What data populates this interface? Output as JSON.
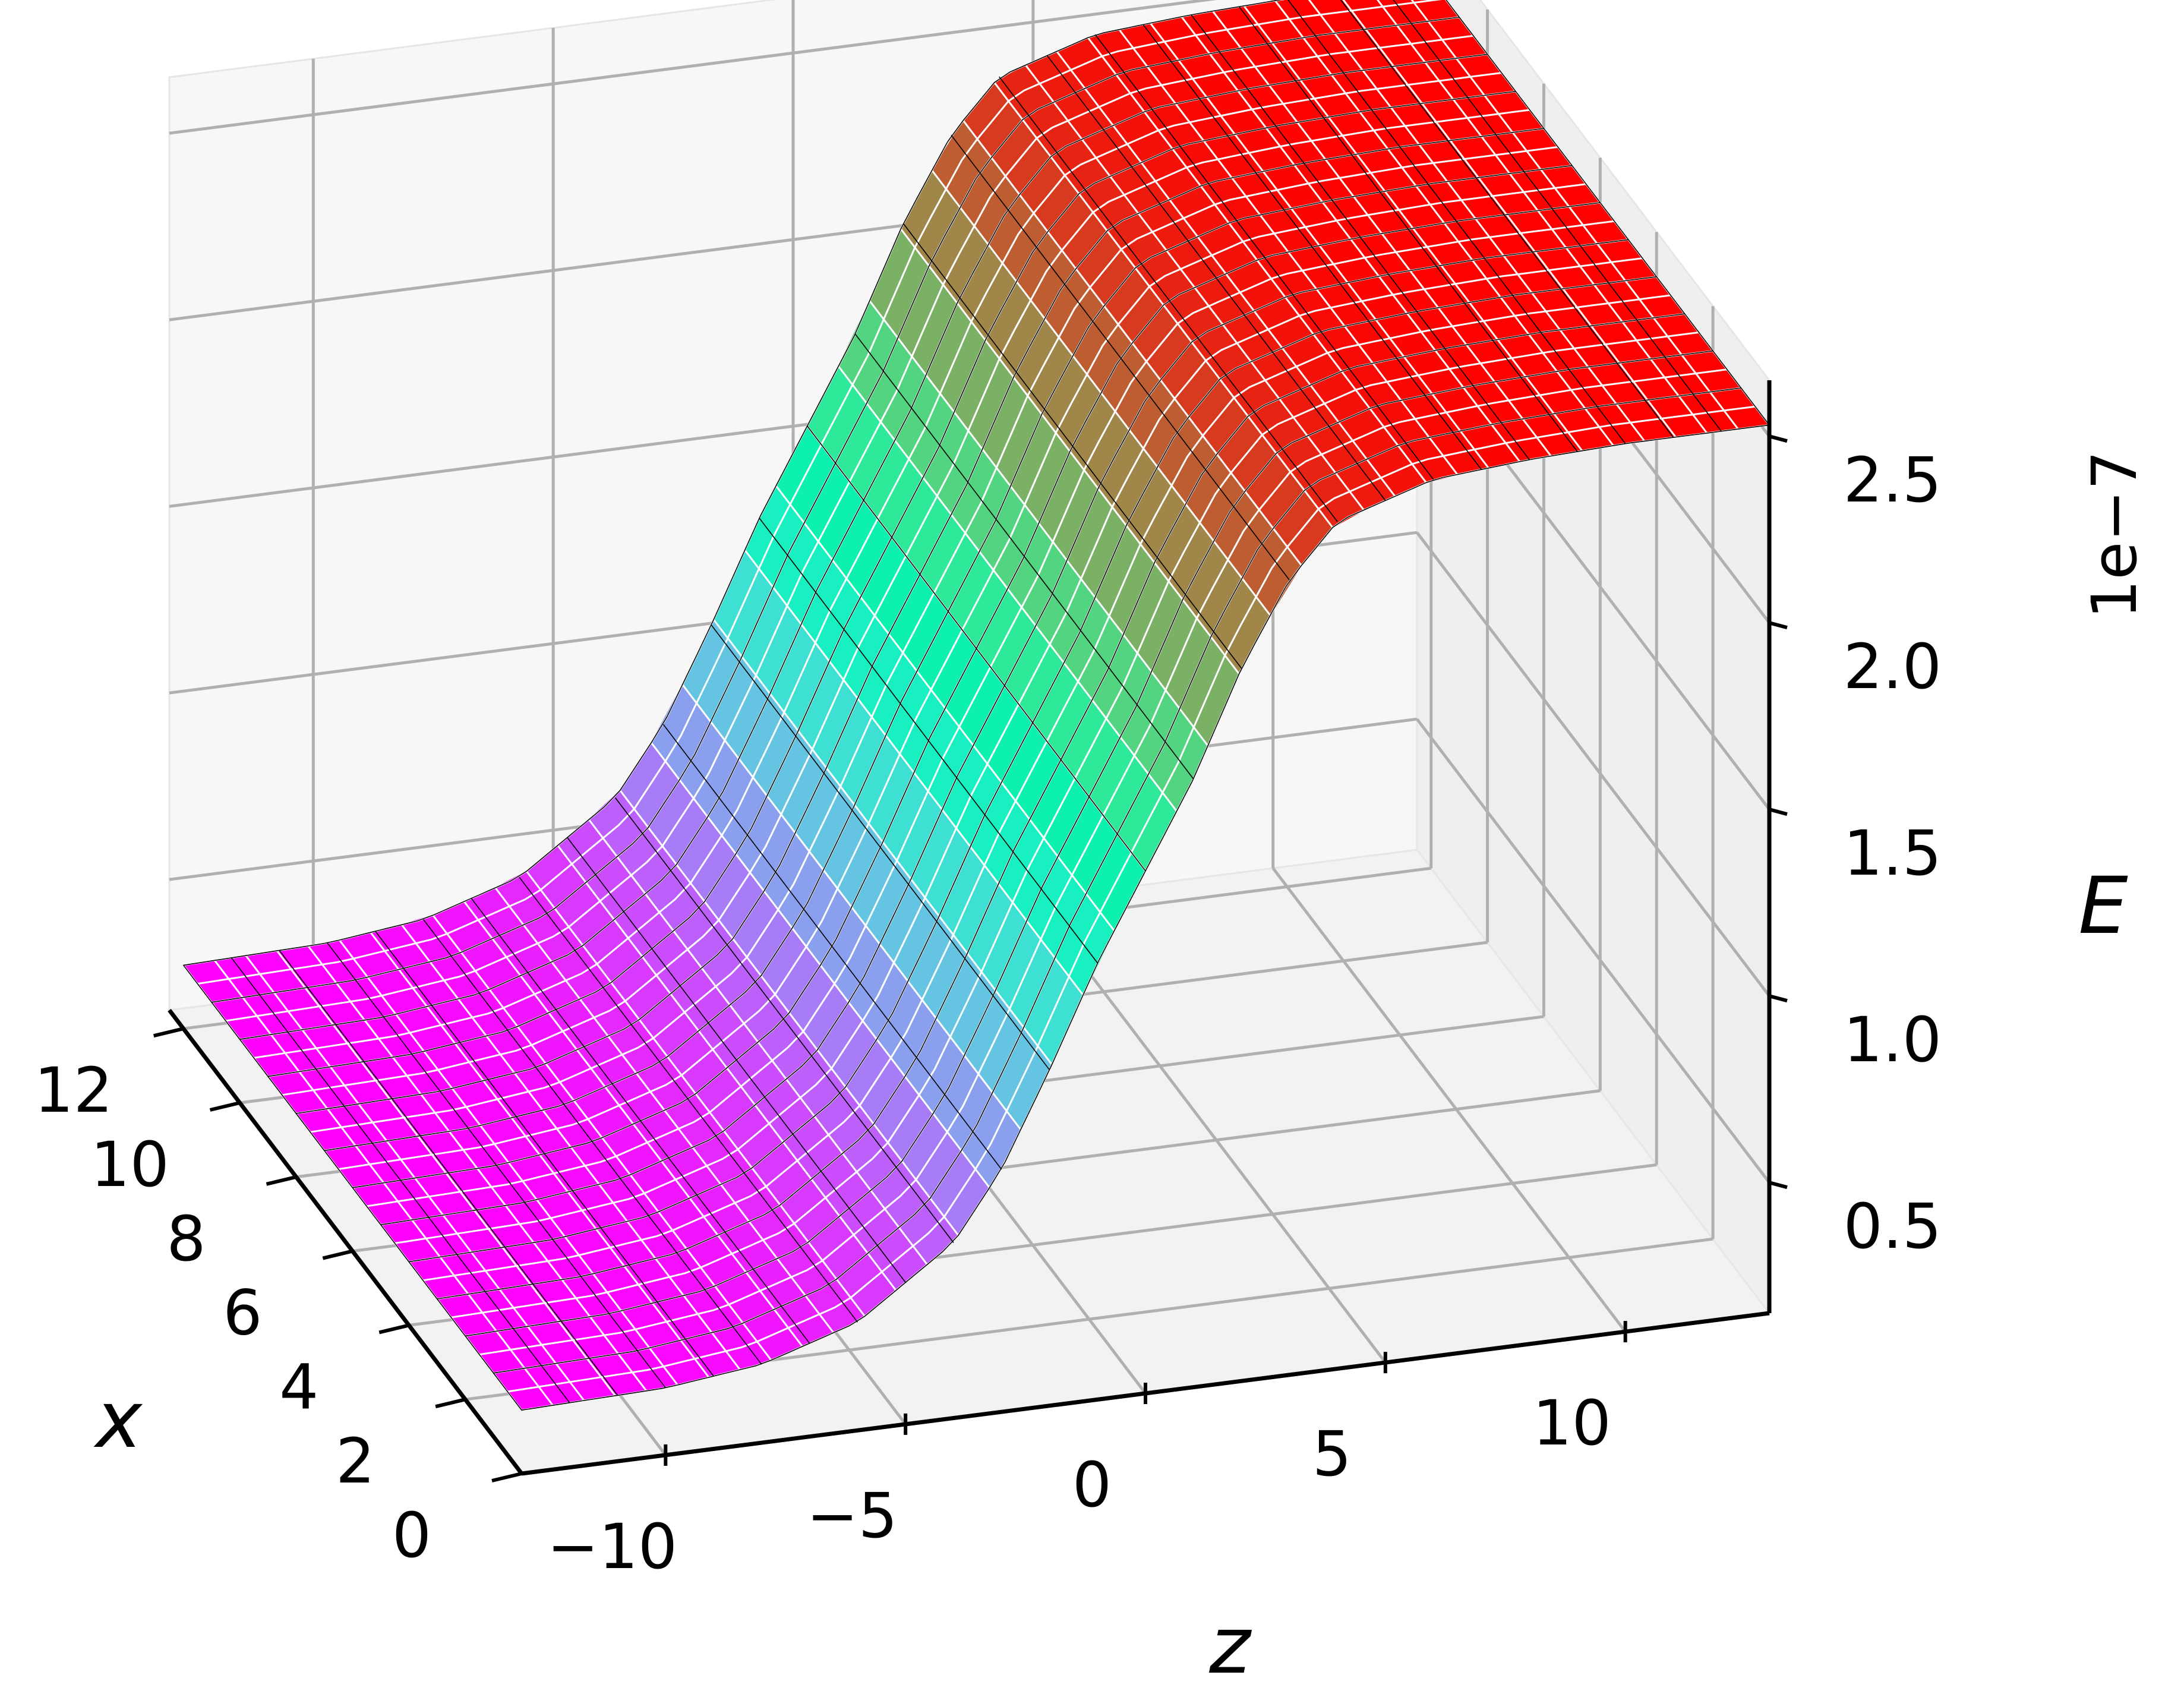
{
  "chart_data": {
    "type": "surface3d",
    "title": "",
    "colormap": "rainbow",
    "colors": {
      "low": "#7f00ff",
      "mid": "#00d4e0",
      "high": "#ff0000",
      "wire_major": "#000000",
      "wire_minor": "#ffffff",
      "pane": "#f2f2f2",
      "grid": "#b0b0b0"
    },
    "axes": {
      "x": {
        "label": "x",
        "range": [
          0,
          12.5
        ],
        "ticks": [
          0,
          2,
          4,
          6,
          8,
          10,
          12
        ],
        "tick_labels": [
          "0",
          "2",
          "4",
          "6",
          "8",
          "10",
          "12"
        ]
      },
      "z": {
        "label": "z",
        "range": [
          -13,
          13
        ],
        "ticks": [
          -10,
          -5,
          0,
          5,
          10
        ],
        "tick_labels": [
          "−10",
          "−5",
          "0",
          "5",
          "10"
        ]
      },
      "E": {
        "label": "E",
        "offset_text": "1e−7",
        "range": [
          0.15,
          2.65
        ],
        "ticks": [
          0.5,
          1.0,
          1.5,
          2.0,
          2.5
        ],
        "tick_labels": [
          "0.5",
          "1.0",
          "1.5",
          "2.0",
          "2.5"
        ]
      }
    },
    "grid": true,
    "surface": {
      "description": "sigmoid step in z",
      "z_samples": [
        -13,
        -10,
        -8,
        -6,
        -4,
        -3,
        -2,
        -1,
        0,
        1,
        2,
        3,
        4,
        6,
        8,
        10,
        13
      ],
      "E_values": [
        0.32,
        0.33,
        0.36,
        0.44,
        0.62,
        0.8,
        1.05,
        1.32,
        1.55,
        1.78,
        2.06,
        2.28,
        2.42,
        2.5,
        2.52,
        2.53,
        2.53
      ]
    }
  }
}
